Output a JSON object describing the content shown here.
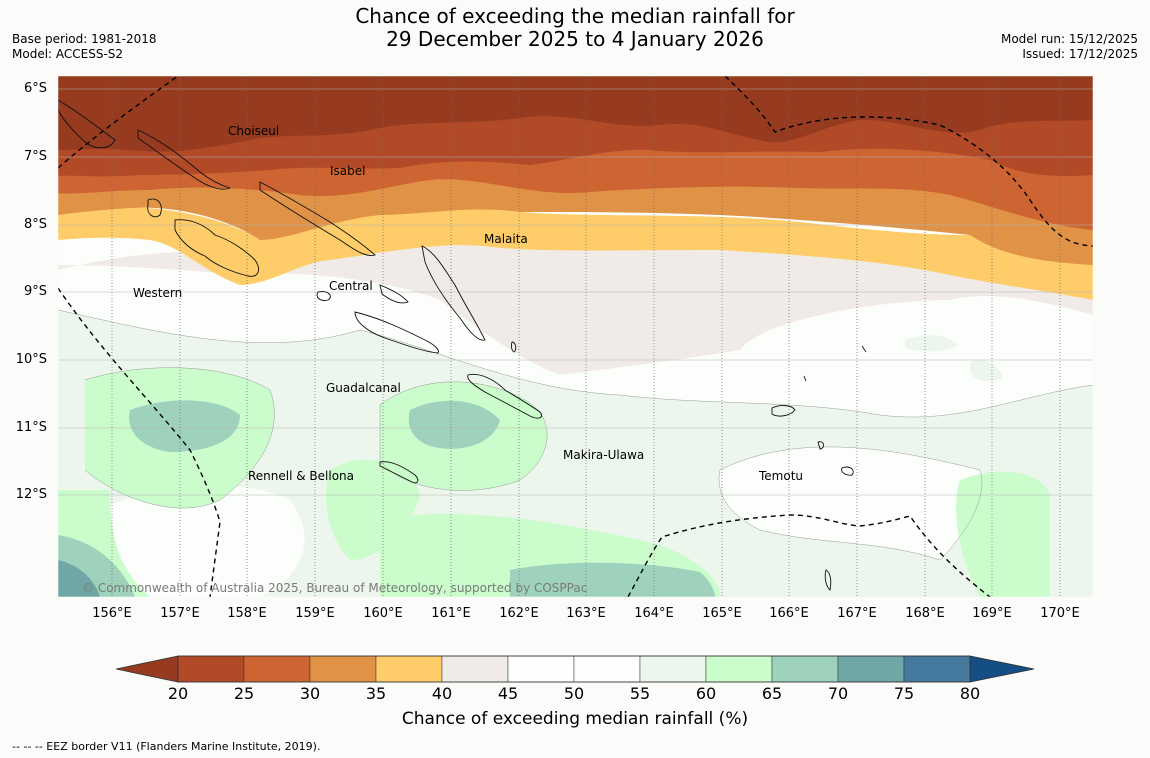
{
  "title": {
    "line1": "Chance of exceeding the median rainfall for",
    "line2": "29 December 2025 to 4 January 2026"
  },
  "meta_left": {
    "base_period": "Base period: 1981-2018",
    "model": "Model: ACCESS-S2"
  },
  "meta_right": {
    "model_run": "Model run: 15/12/2025",
    "issued": "Issued: 17/12/2025"
  },
  "map": {
    "lat_labels": [
      "6°S",
      "7°S",
      "8°S",
      "9°S",
      "10°S",
      "11°S",
      "12°S"
    ],
    "lon_labels": [
      "156°E",
      "157°E",
      "158°E",
      "159°E",
      "160°E",
      "161°E",
      "162°E",
      "163°E",
      "164°E",
      "165°E",
      "166°E",
      "167°E",
      "168°E",
      "169°E",
      "170°E"
    ],
    "places": [
      "Choiseul",
      "Isabel",
      "Malaita",
      "Western",
      "Central",
      "Guadalcanal",
      "Makira-Ulawa",
      "Rennell & Bellona",
      "Temotu"
    ],
    "copyright": "© Commonwealth of Australia 2025, Bureau of Meteorology, supported by COSPPac"
  },
  "colorbar": {
    "colors": [
      "#963b1f",
      "#b24a27",
      "#cd6431",
      "#e09247",
      "#fecc68",
      "#f1ebe7",
      "#fcfefc",
      "#fcfefc",
      "#ecf6ec",
      "#cafccc",
      "#9ed2bc",
      "#70a7a6",
      "#45799e",
      "#144e85"
    ],
    "ticks": [
      "20",
      "25",
      "30",
      "35",
      "40",
      "45",
      "50",
      "55",
      "60",
      "65",
      "70",
      "75",
      "80"
    ],
    "title": "Chance of exceeding median rainfall (%)"
  },
  "footer": "--  --  -- EEZ border V11 (Flanders Marine Institute, 2019)."
}
